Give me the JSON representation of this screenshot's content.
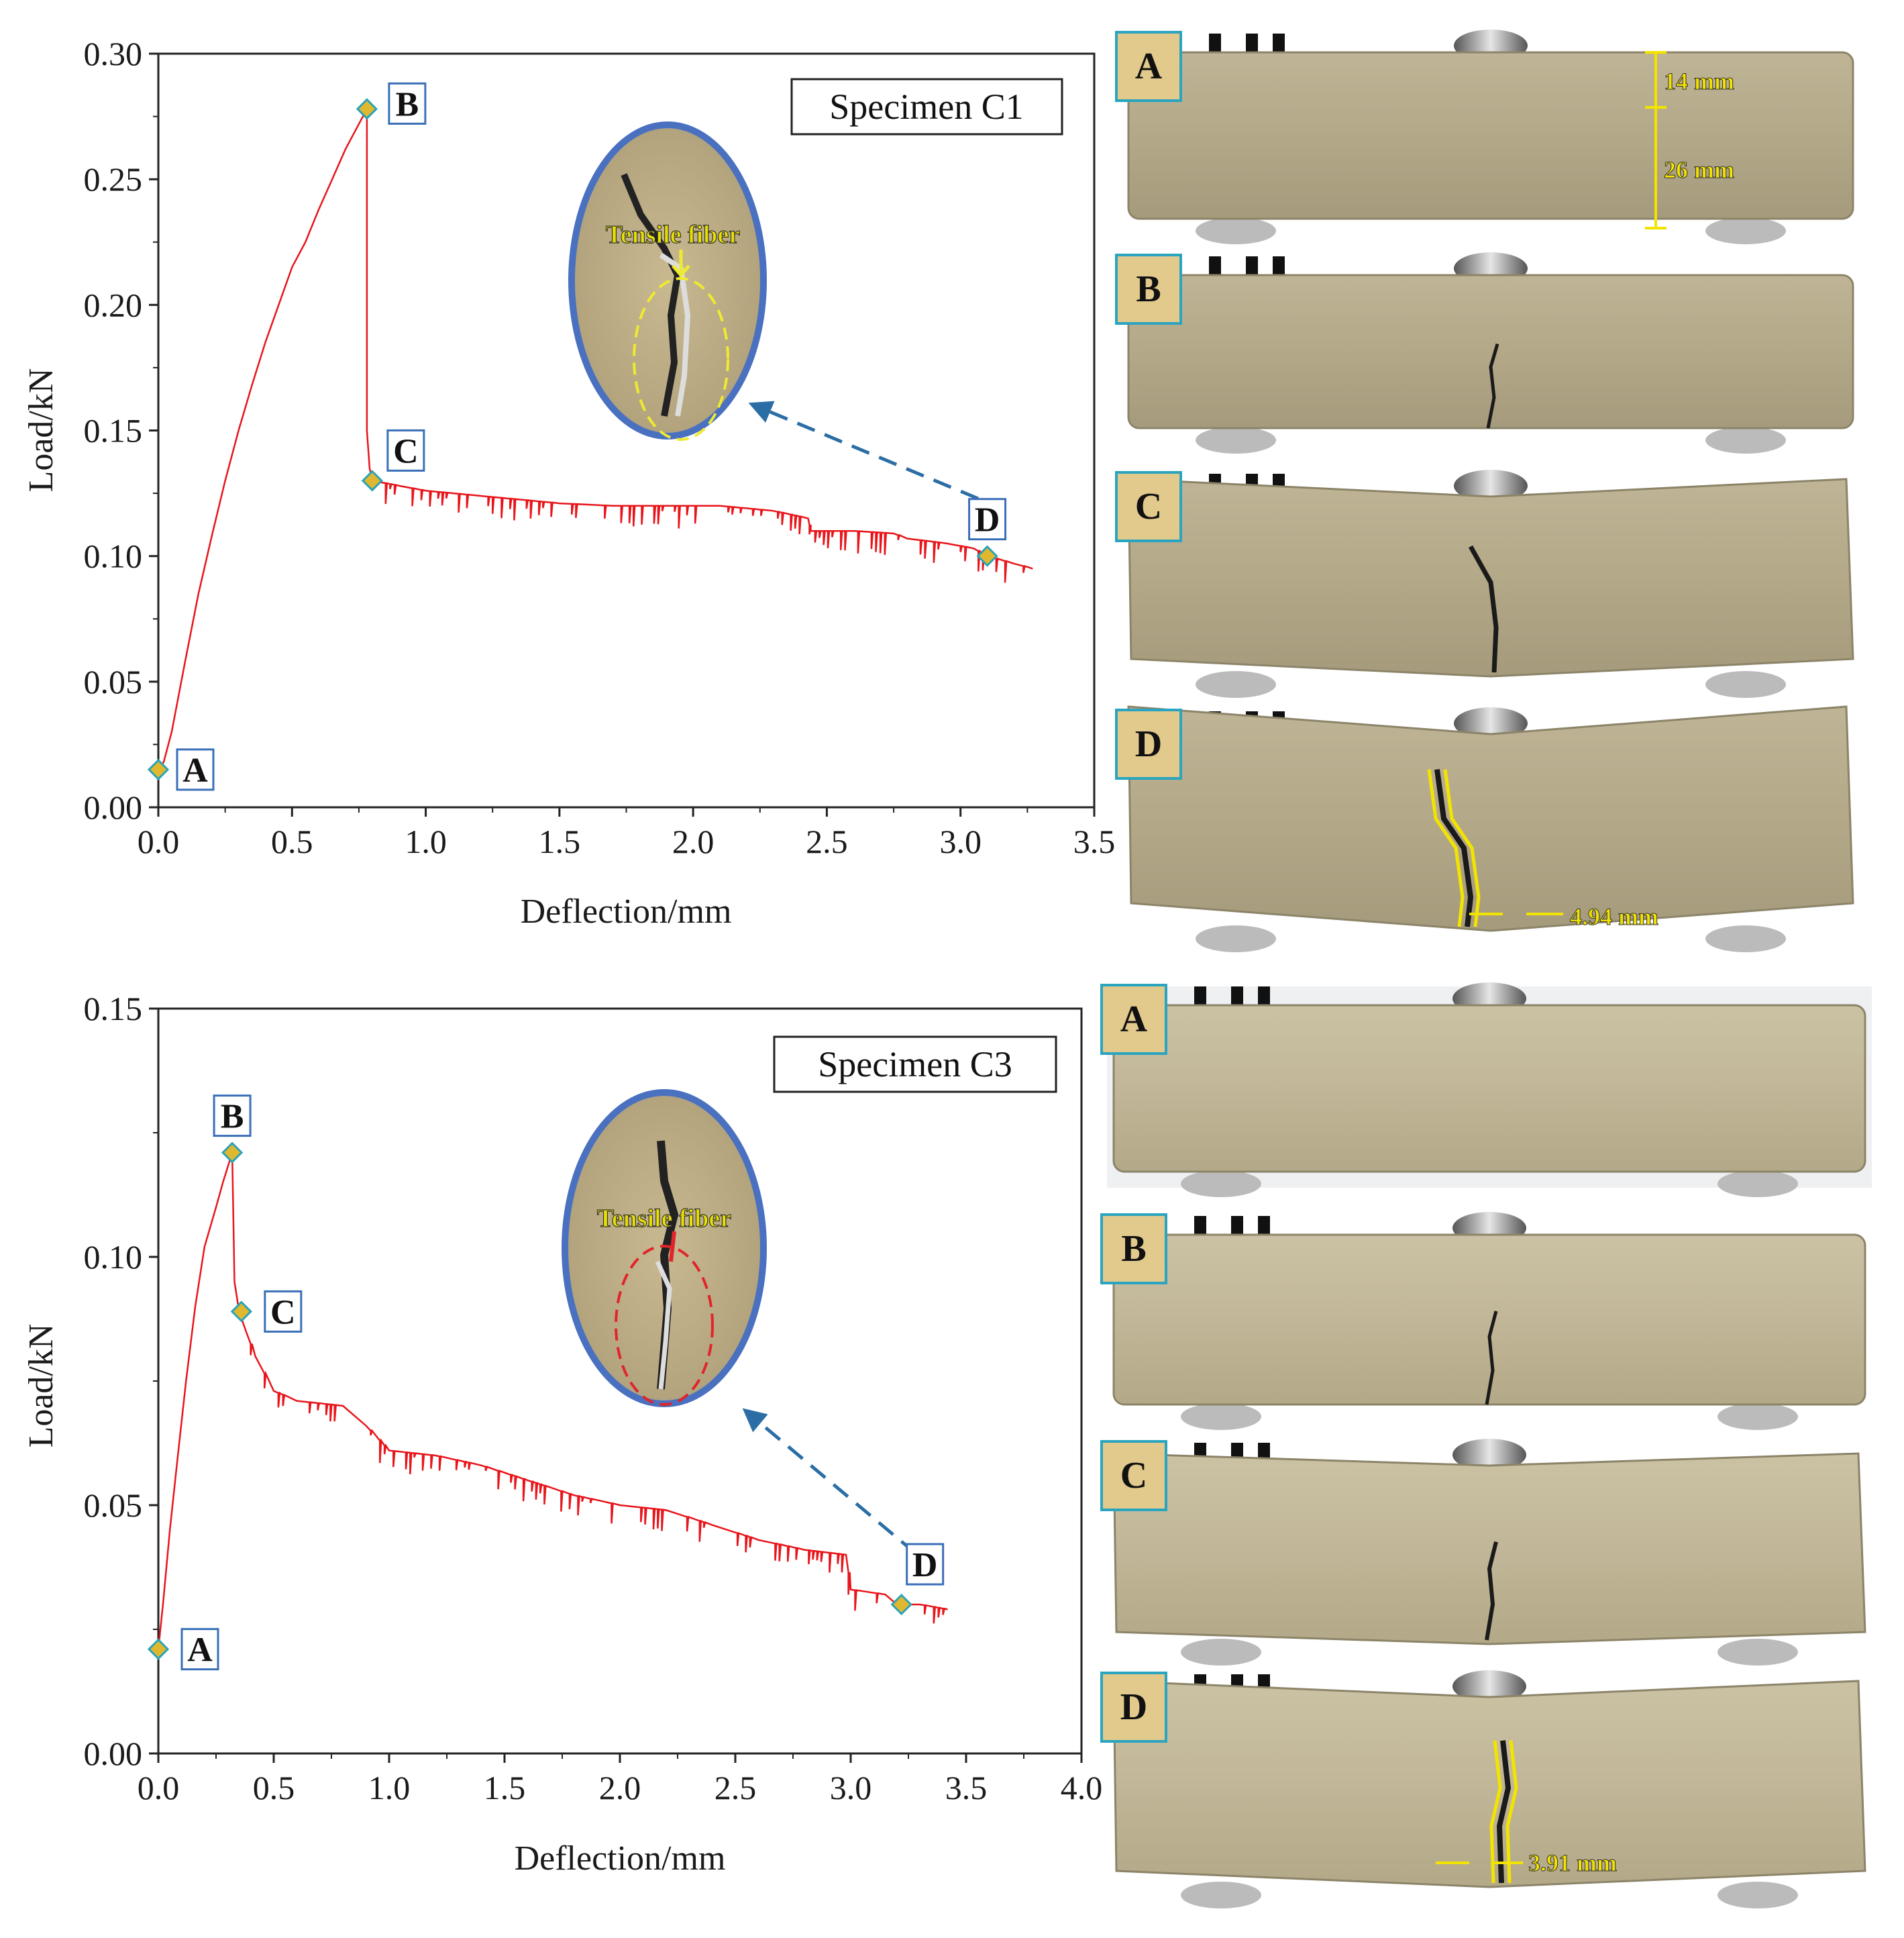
{
  "colors": {
    "curve": "#e8151b",
    "marker_fill": "#e0b830",
    "marker_stroke": "#2aa3b7",
    "arrow": "#2b6ea6",
    "label_box_fill": "#e2c98c",
    "label_box_stroke": "#2ba4c0",
    "specimen_fill": "#b7ad8e",
    "yellow": "#f3e400"
  },
  "chart_data": [
    {
      "type": "line",
      "specimen_label": "Specimen C1",
      "xlabel": "Deflection/mm",
      "ylabel": "Load/kN",
      "xlim": [
        0,
        3.5
      ],
      "ylim": [
        0,
        0.3
      ],
      "grid": false,
      "x_ticks": [
        "0.0",
        "0.5",
        "1.0",
        "1.5",
        "2.0",
        "2.5",
        "3.0",
        "3.5"
      ],
      "y_ticks": [
        "0.00",
        "0.05",
        "0.10",
        "0.15",
        "0.20",
        "0.25",
        "0.30"
      ],
      "series": [
        {
          "name": "C1",
          "x": [
            0,
            0.02,
            0.05,
            0.1,
            0.15,
            0.2,
            0.25,
            0.3,
            0.35,
            0.4,
            0.45,
            0.5,
            0.55,
            0.6,
            0.65,
            0.7,
            0.75,
            0.78,
            0.78,
            0.79,
            0.8,
            0.9,
            1.0,
            1.2,
            1.3,
            1.5,
            1.7,
            1.9,
            2.1,
            2.3,
            2.43,
            2.44,
            2.6,
            2.75,
            2.8,
            2.95,
            3.05,
            3.1,
            3.2,
            3.27
          ],
          "y": [
            0.015,
            0.018,
            0.03,
            0.058,
            0.085,
            0.108,
            0.13,
            0.15,
            0.168,
            0.185,
            0.2,
            0.215,
            0.225,
            0.238,
            0.25,
            0.262,
            0.272,
            0.278,
            0.15,
            0.135,
            0.13,
            0.128,
            0.126,
            0.124,
            0.123,
            0.121,
            0.12,
            0.12,
            0.12,
            0.118,
            0.115,
            0.11,
            0.11,
            0.109,
            0.107,
            0.105,
            0.103,
            0.1,
            0.097,
            0.095
          ]
        }
      ],
      "points": [
        {
          "label": "A",
          "x": 0.0,
          "y": 0.015
        },
        {
          "label": "B",
          "x": 0.78,
          "y": 0.278
        },
        {
          "label": "C",
          "x": 0.8,
          "y": 0.13
        },
        {
          "label": "D",
          "x": 3.1,
          "y": 0.1
        }
      ],
      "inset_label": "Tensile fiber"
    },
    {
      "type": "line",
      "specimen_label": "Specimen C3",
      "xlabel": "Deflection/mm",
      "ylabel": "Load/kN",
      "xlim": [
        0,
        4.0
      ],
      "ylim": [
        0,
        0.15
      ],
      "grid": false,
      "x_ticks": [
        "0.0",
        "0.5",
        "1.0",
        "1.5",
        "2.0",
        "2.5",
        "3.0",
        "3.5",
        "4.0"
      ],
      "y_ticks": [
        "0.00",
        "0.05",
        "0.10",
        "0.15"
      ],
      "series": [
        {
          "name": "C3",
          "x": [
            0,
            0.02,
            0.05,
            0.08,
            0.12,
            0.16,
            0.2,
            0.25,
            0.28,
            0.32,
            0.33,
            0.35,
            0.38,
            0.42,
            0.5,
            0.6,
            0.8,
            0.9,
            1.0,
            1.2,
            1.4,
            1.6,
            1.8,
            2.0,
            2.2,
            2.4,
            2.6,
            2.8,
            2.98,
            3.0,
            3.15,
            3.2,
            3.3,
            3.42
          ],
          "y": [
            0.021,
            0.03,
            0.045,
            0.058,
            0.075,
            0.09,
            0.102,
            0.11,
            0.115,
            0.121,
            0.095,
            0.089,
            0.085,
            0.08,
            0.073,
            0.071,
            0.07,
            0.066,
            0.061,
            0.06,
            0.058,
            0.055,
            0.052,
            0.05,
            0.049,
            0.046,
            0.043,
            0.041,
            0.04,
            0.033,
            0.032,
            0.03,
            0.03,
            0.029
          ]
        }
      ],
      "points": [
        {
          "label": "A",
          "x": 0.0,
          "y": 0.021
        },
        {
          "label": "B",
          "x": 0.32,
          "y": 0.121
        },
        {
          "label": "C",
          "x": 0.36,
          "y": 0.089
        },
        {
          "label": "D",
          "x": 3.22,
          "y": 0.03
        }
      ],
      "inset_label": "Tensile fiber"
    }
  ],
  "photos": {
    "C1": {
      "stages": [
        "A",
        "B",
        "C",
        "D"
      ],
      "dim_top": "14 mm",
      "dim_bottom": "26 mm",
      "crack_width": "4.94 mm"
    },
    "C3": {
      "stages": [
        "A",
        "B",
        "C",
        "D"
      ],
      "crack_width": "3.91 mm"
    }
  }
}
